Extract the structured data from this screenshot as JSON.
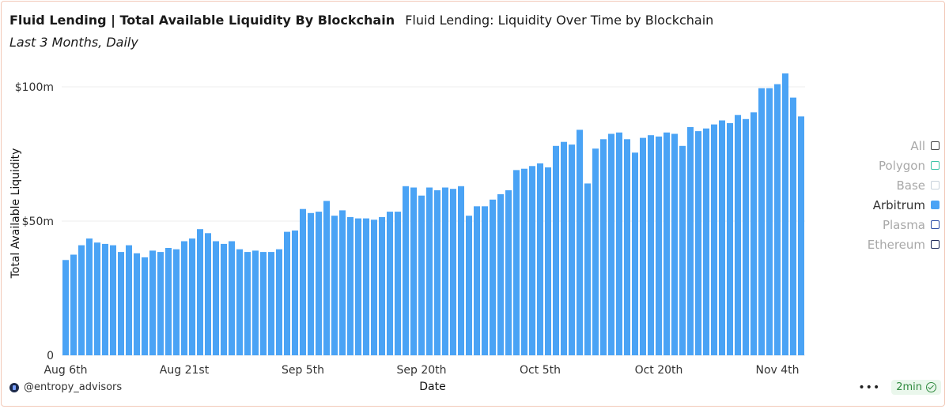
{
  "header": {
    "title": "Fluid Lending | Total Available Liquidity By Blockchain",
    "chart_name": "Fluid Lending: Liquidity Over Time by Blockchain",
    "subtitle": "Last 3 Months, Daily"
  },
  "legend": {
    "items": [
      {
        "label": "All",
        "color": "#444444",
        "active": false,
        "filled": false
      },
      {
        "label": "Polygon",
        "color": "#3cc4a8",
        "active": false,
        "filled": false
      },
      {
        "label": "Base",
        "color": "#c8d2dc",
        "active": false,
        "filled": false
      },
      {
        "label": "Arbitrum",
        "color": "#4aa3f5",
        "active": true,
        "filled": true
      },
      {
        "label": "Plasma",
        "color": "#2f4fa8",
        "active": false,
        "filled": false
      },
      {
        "label": "Ethereum",
        "color": "#1f2a5a",
        "active": false,
        "filled": false
      }
    ]
  },
  "footer": {
    "handle": "@entropy_advisors",
    "menu_label": "•••",
    "refresh_badge": "2min"
  },
  "colors": {
    "bar": "#4aa3f5",
    "grid": "#eeeeee"
  },
  "chart_data": {
    "type": "bar",
    "title": "Fluid Lending: Liquidity Over Time by Blockchain",
    "xlabel": "Date",
    "ylabel": "Total Available Liquidity",
    "ylim": [
      0,
      107
    ],
    "y_unit": "$m",
    "yticks": [
      {
        "value": 0,
        "label": "0"
      },
      {
        "value": 50,
        "label": "$50m"
      },
      {
        "value": 100,
        "label": "$100m"
      }
    ],
    "xticks": [
      {
        "index": 0,
        "label": "Aug 6th"
      },
      {
        "index": 15,
        "label": "Aug 21st"
      },
      {
        "index": 30,
        "label": "Sep 5th"
      },
      {
        "index": 45,
        "label": "Sep 20th"
      },
      {
        "index": 60,
        "label": "Oct 5th"
      },
      {
        "index": 75,
        "label": "Oct 20th"
      },
      {
        "index": 90,
        "label": "Nov 4th"
      }
    ],
    "grid": true,
    "legend_position": "right",
    "series": [
      {
        "name": "Arbitrum",
        "start_date": "2025-08-06",
        "frequency": "daily",
        "values": [
          35.5,
          37.5,
          41,
          43.5,
          42,
          41.5,
          41,
          38.5,
          41,
          38,
          36.5,
          39,
          38.5,
          40,
          39.5,
          42.5,
          43.5,
          47,
          45.5,
          42.5,
          41.5,
          42.5,
          39.5,
          38.5,
          39,
          38.5,
          38.5,
          39.5,
          46,
          46.5,
          54.5,
          53,
          53.5,
          57.5,
          52,
          54,
          51.5,
          51,
          51,
          50.5,
          51.5,
          53.5,
          53.5,
          63,
          62.5,
          59.5,
          62.5,
          61.5,
          62.5,
          62,
          63,
          52,
          55.5,
          55.5,
          58,
          60,
          61.5,
          69,
          69.5,
          70.5,
          71.5,
          70,
          78,
          79.5,
          78.5,
          84,
          64,
          77,
          80.5,
          82.5,
          83,
          80.5,
          75.5,
          81,
          82,
          81.5,
          83,
          82.5,
          78,
          85,
          83.5,
          84.5,
          86,
          87.5,
          86.5,
          89.5,
          88,
          90.5,
          99.5,
          99.5,
          101,
          105,
          96,
          89
        ]
      }
    ]
  }
}
